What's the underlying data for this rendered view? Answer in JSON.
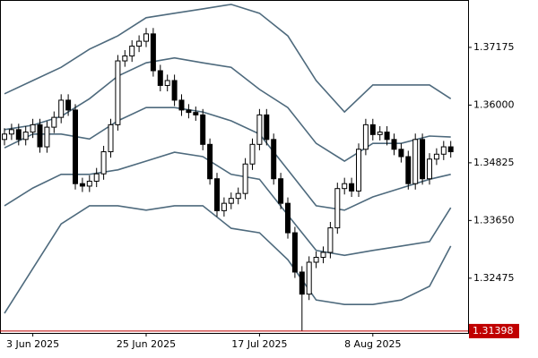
{
  "chart_data": {
    "type": "candlestick",
    "categories": [
      null,
      null,
      null,
      null,
      "3 Jun 2025",
      null,
      null,
      null,
      null,
      null,
      null,
      null,
      null,
      null,
      null,
      null,
      null,
      null,
      null,
      null,
      "25 Jun 2025",
      null,
      null,
      null,
      null,
      null,
      null,
      null,
      null,
      null,
      null,
      null,
      null,
      null,
      null,
      null,
      "17 Jul 2025",
      null,
      null,
      null,
      null,
      null,
      null,
      null,
      null,
      null,
      null,
      null,
      null,
      null,
      null,
      null,
      "8 Aug 2025",
      null,
      null,
      null,
      null,
      null,
      null,
      null,
      null,
      null,
      null,
      null
    ],
    "open": [
      1.353,
      1.3541,
      1.355,
      1.353,
      1.3545,
      1.356,
      1.3515,
      1.3555,
      1.3575,
      1.361,
      1.359,
      1.344,
      1.3435,
      1.3445,
      1.346,
      1.3505,
      1.356,
      1.369,
      1.37,
      1.372,
      1.373,
      1.3745,
      1.367,
      1.364,
      1.365,
      1.361,
      1.359,
      1.3585,
      1.358,
      1.352,
      1.345,
      1.3385,
      1.34,
      1.341,
      1.342,
      1.348,
      1.352,
      1.358,
      1.353,
      1.345,
      1.34,
      1.334,
      1.326,
      1.3215,
      1.328,
      1.329,
      1.33,
      1.335,
      1.343,
      1.344,
      1.3425,
      1.351,
      1.356,
      1.354,
      1.3545,
      1.353,
      1.351,
      1.3495,
      1.344,
      1.353,
      1.345,
      1.349,
      1.35,
      1.3515
    ],
    "high": [
      1.3553,
      1.3562,
      1.3562,
      1.3557,
      1.3572,
      1.3572,
      1.3567,
      1.3587,
      1.3622,
      1.3622,
      1.3602,
      1.3452,
      1.3457,
      1.3472,
      1.3517,
      1.3572,
      1.3702,
      1.3712,
      1.3732,
      1.3742,
      1.3757,
      1.3757,
      1.3682,
      1.3662,
      1.3662,
      1.3622,
      1.3602,
      1.3597,
      1.3592,
      1.3532,
      1.3462,
      1.3412,
      1.3422,
      1.3432,
      1.3492,
      1.3532,
      1.3592,
      1.3592,
      1.3542,
      1.3462,
      1.3412,
      1.3352,
      1.3272,
      1.3292,
      1.3302,
      1.3312,
      1.3362,
      1.3442,
      1.3452,
      1.3452,
      1.3522,
      1.3572,
      1.3572,
      1.3557,
      1.3557,
      1.3542,
      1.3522,
      1.3507,
      1.3542,
      1.3542,
      1.3502,
      1.3512,
      1.3527,
      1.3527
    ],
    "low": [
      1.3518,
      1.3529,
      1.3518,
      1.3518,
      1.3533,
      1.3503,
      1.3503,
      1.3543,
      1.3563,
      1.3578,
      1.3428,
      1.3423,
      1.3423,
      1.3433,
      1.3448,
      1.3493,
      1.3548,
      1.3678,
      1.3688,
      1.3708,
      1.3718,
      1.3658,
      1.3628,
      1.3628,
      1.3598,
      1.3578,
      1.3573,
      1.3568,
      1.3508,
      1.3438,
      1.3373,
      1.3373,
      1.3388,
      1.3398,
      1.3408,
      1.3468,
      1.3508,
      1.3518,
      1.3438,
      1.3388,
      1.3328,
      1.3248,
      1.314,
      1.3203,
      1.3268,
      1.3278,
      1.3288,
      1.3338,
      1.3418,
      1.3413,
      1.3413,
      1.3498,
      1.3528,
      1.3528,
      1.3518,
      1.3498,
      1.3483,
      1.3428,
      1.3428,
      1.3438,
      1.3438,
      1.3478,
      1.3488,
      1.3493
    ],
    "close": [
      1.3541,
      1.355,
      1.353,
      1.3545,
      1.356,
      1.3515,
      1.3555,
      1.3575,
      1.361,
      1.359,
      1.344,
      1.3435,
      1.3445,
      1.346,
      1.3505,
      1.356,
      1.369,
      1.37,
      1.372,
      1.373,
      1.3745,
      1.367,
      1.364,
      1.365,
      1.361,
      1.359,
      1.3585,
      1.358,
      1.352,
      1.345,
      1.3385,
      1.34,
      1.341,
      1.342,
      1.348,
      1.352,
      1.358,
      1.353,
      1.345,
      1.34,
      1.334,
      1.326,
      1.3215,
      1.328,
      1.329,
      1.33,
      1.335,
      1.343,
      1.344,
      1.3425,
      1.351,
      1.356,
      1.354,
      1.3545,
      1.353,
      1.351,
      1.3495,
      1.344,
      1.353,
      1.345,
      1.349,
      1.35,
      1.3515,
      1.3505
    ],
    "bands": {
      "color": "#4e6a7d",
      "x": [
        0,
        4,
        8,
        12,
        16,
        20,
        24,
        28,
        32,
        36,
        40,
        44,
        48,
        52,
        56,
        60,
        63
      ],
      "lines": [
        [
          1.3623,
          1.365,
          1.3677,
          1.3714,
          1.3741,
          1.3778,
          1.3787,
          1.3796,
          1.3805,
          1.3787,
          1.3741,
          1.365,
          1.3586,
          1.3641,
          1.3641,
          1.3641,
          1.3613
        ],
        [
          1.355,
          1.3559,
          1.3577,
          1.3613,
          1.3659,
          1.3686,
          1.3696,
          1.3686,
          1.3677,
          1.3632,
          1.3595,
          1.3522,
          1.3486,
          1.3522,
          1.3522,
          1.3537,
          1.3535
        ],
        [
          1.3513,
          1.3541,
          1.3541,
          1.3531,
          1.3568,
          1.3595,
          1.3595,
          1.3586,
          1.3568,
          1.3541,
          1.3468,
          1.3395,
          1.3386,
          1.3413,
          1.3431,
          1.3449,
          1.3459
        ],
        [
          1.3395,
          1.3431,
          1.3459,
          1.3459,
          1.3468,
          1.3486,
          1.3504,
          1.3495,
          1.3459,
          1.3449,
          1.3376,
          1.3304,
          1.3294,
          1.3304,
          1.3313,
          1.3322,
          1.3391
        ],
        [
          1.3176,
          1.3267,
          1.3358,
          1.3395,
          1.3395,
          1.3386,
          1.3395,
          1.3395,
          1.3349,
          1.334,
          1.3285,
          1.3203,
          1.3194,
          1.3194,
          1.3203,
          1.3231,
          1.3313
        ]
      ]
    },
    "current_price": 1.31398,
    "current_price_color": "#c00000",
    "ylim": [
      1.3136,
      1.3814
    ],
    "yticks": [
      {
        "value": 1.37175,
        "label": "1.37175"
      },
      {
        "value": 1.36,
        "label": "1.36000"
      },
      {
        "value": 1.34825,
        "label": "1.34825"
      },
      {
        "value": 1.3365,
        "label": "1.33650"
      },
      {
        "value": 1.32475,
        "label": "1.32475"
      }
    ]
  }
}
